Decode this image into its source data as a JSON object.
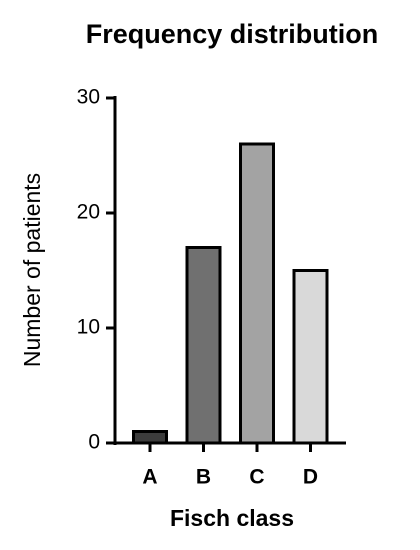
{
  "chart_data": {
    "type": "bar",
    "title": "Frequency distribution",
    "x_label": "Fisch class",
    "y_label": "Number of patients",
    "categories": [
      "A",
      "B",
      "C",
      "D"
    ],
    "values": [
      1,
      17,
      26,
      15
    ],
    "colors": [
      "#3c3c3c",
      "#707070",
      "#a3a3a3",
      "#d9d9d9"
    ],
    "ylim": [
      0,
      30
    ],
    "yticks": [
      0,
      10,
      20,
      30
    ],
    "grid": false
  }
}
